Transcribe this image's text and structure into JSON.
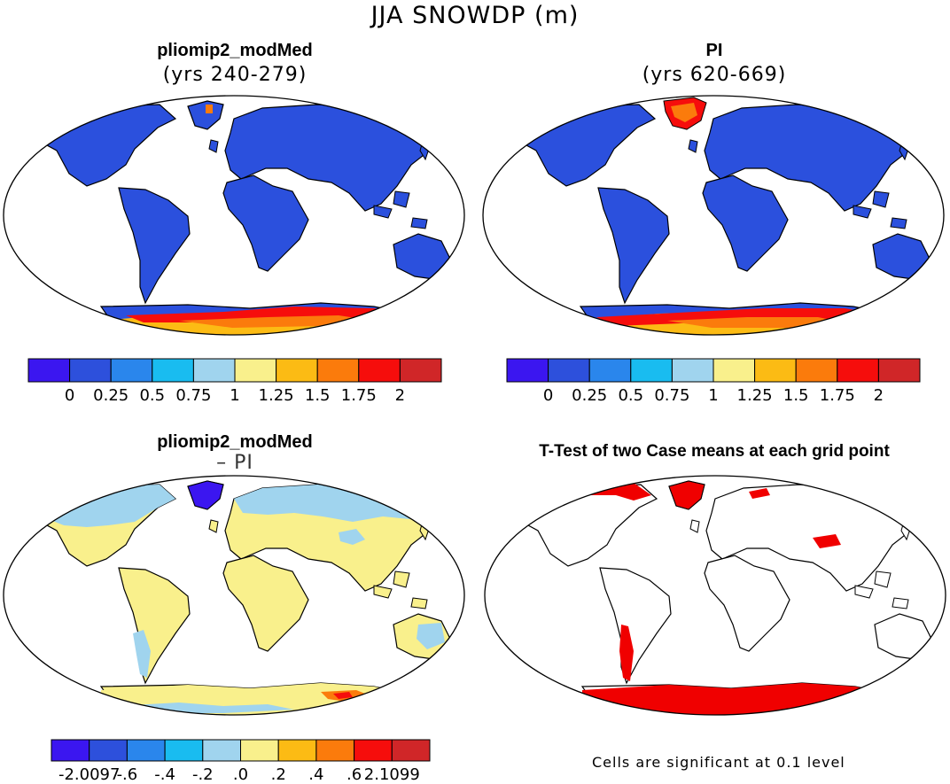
{
  "figure": {
    "title": "JJA SNOWDP (m)",
    "panels": [
      {
        "title": "pliomip2_modMed",
        "subtitle": "(yrs 240-279)",
        "map_type": "snow-depth",
        "land_value": "0",
        "antarctica": "1.25-2"
      },
      {
        "title": "PI",
        "subtitle": "(yrs 620-669)",
        "map_type": "snow-depth",
        "land_value": "0",
        "antarctica": "1.25-2"
      },
      {
        "title": "pliomip2_modMed",
        "subtitle": "– PI",
        "map_type": "difference",
        "land_value": "0 to .2",
        "northern_high_latitudes": "-.2 to .0"
      },
      {
        "title": "T-Test of two Case means at each grid point",
        "subtitle": "",
        "map_type": "significance"
      }
    ],
    "footnote": "Cells are significant at 0.1 level"
  },
  "colors": {
    "palette": [
      "#3b16f0",
      "#2d50dc",
      "#2a86ec",
      "#19bcf0",
      "#a0d4ee",
      "#f9f08c",
      "#fcbb14",
      "#fb7b0c",
      "#f60d0c",
      "#d02628"
    ],
    "significant": "#f00000",
    "land_fill_snow": "#2b50dd",
    "land_fill_diff": "#f9f08c",
    "coast": "#000000"
  },
  "chart_data": [
    {
      "type": "colorbar",
      "panel": "pliomip2_modMed",
      "levels": [
        "0",
        "0.25",
        "0.5",
        "0.75",
        "1",
        "1.25",
        "1.5",
        "1.75",
        "2"
      ],
      "n_bins": 10
    },
    {
      "type": "colorbar",
      "panel": "PI",
      "levels": [
        "0",
        "0.25",
        "0.5",
        "0.75",
        "1",
        "1.25",
        "1.5",
        "1.75",
        "2"
      ],
      "n_bins": 10
    },
    {
      "type": "colorbar",
      "panel": "pliomip2_modMed – PI",
      "levels": [
        "-2.0097",
        "-.6",
        "-.4",
        "-.2",
        ".0",
        ".2",
        ".4",
        ".6",
        "2.1099"
      ],
      "n_bins": 10
    }
  ]
}
